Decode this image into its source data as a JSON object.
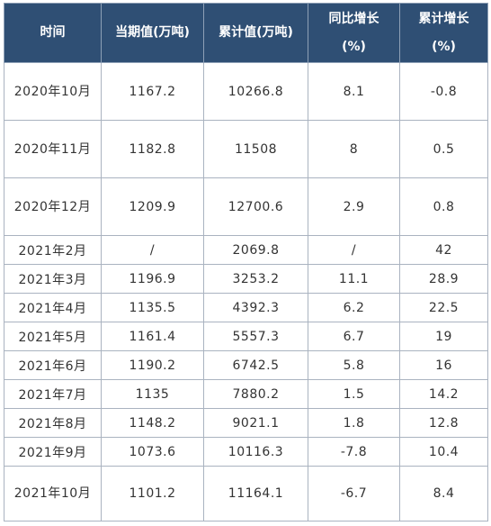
{
  "table": {
    "headers": [
      "时间",
      "当期值(万吨)",
      "累计值(万吨)",
      "同比增长\n(%)",
      "累计增长\n(%)"
    ],
    "rows": [
      [
        "2020年10月",
        "1167.2",
        "10266.8",
        "8.1",
        "-0.8"
      ],
      [
        "2020年11月",
        "1182.8",
        "11508",
        "8",
        "0.5"
      ],
      [
        "2020年12月",
        "1209.9",
        "12700.6",
        "2.9",
        "0.8"
      ],
      [
        "2021年2月",
        "/",
        "2069.8",
        "/",
        "42"
      ],
      [
        "2021年3月",
        "1196.9",
        "3253.2",
        "11.1",
        "28.9"
      ],
      [
        "2021年4月",
        "1135.5",
        "4392.3",
        "6.2",
        "22.5"
      ],
      [
        "2021年5月",
        "1161.4",
        "5557.3",
        "6.7",
        "19"
      ],
      [
        "2021年6月",
        "1190.2",
        "6742.5",
        "5.8",
        "16"
      ],
      [
        "2021年7月",
        "1135",
        "7880.2",
        "1.5",
        "14.2"
      ],
      [
        "2021年8月",
        "1148.2",
        "9021.1",
        "1.8",
        "12.8"
      ],
      [
        "2021年9月",
        "1073.6",
        "10116.3",
        "-7.8",
        "10.4"
      ],
      [
        "2021年10月",
        "1101.2",
        "11164.1",
        "-6.7",
        "8.4"
      ]
    ]
  },
  "colors": {
    "header_bg": "#2f4f74",
    "header_text": "#ffffff",
    "border": "#aab3c0",
    "cell_text": "#333333"
  }
}
